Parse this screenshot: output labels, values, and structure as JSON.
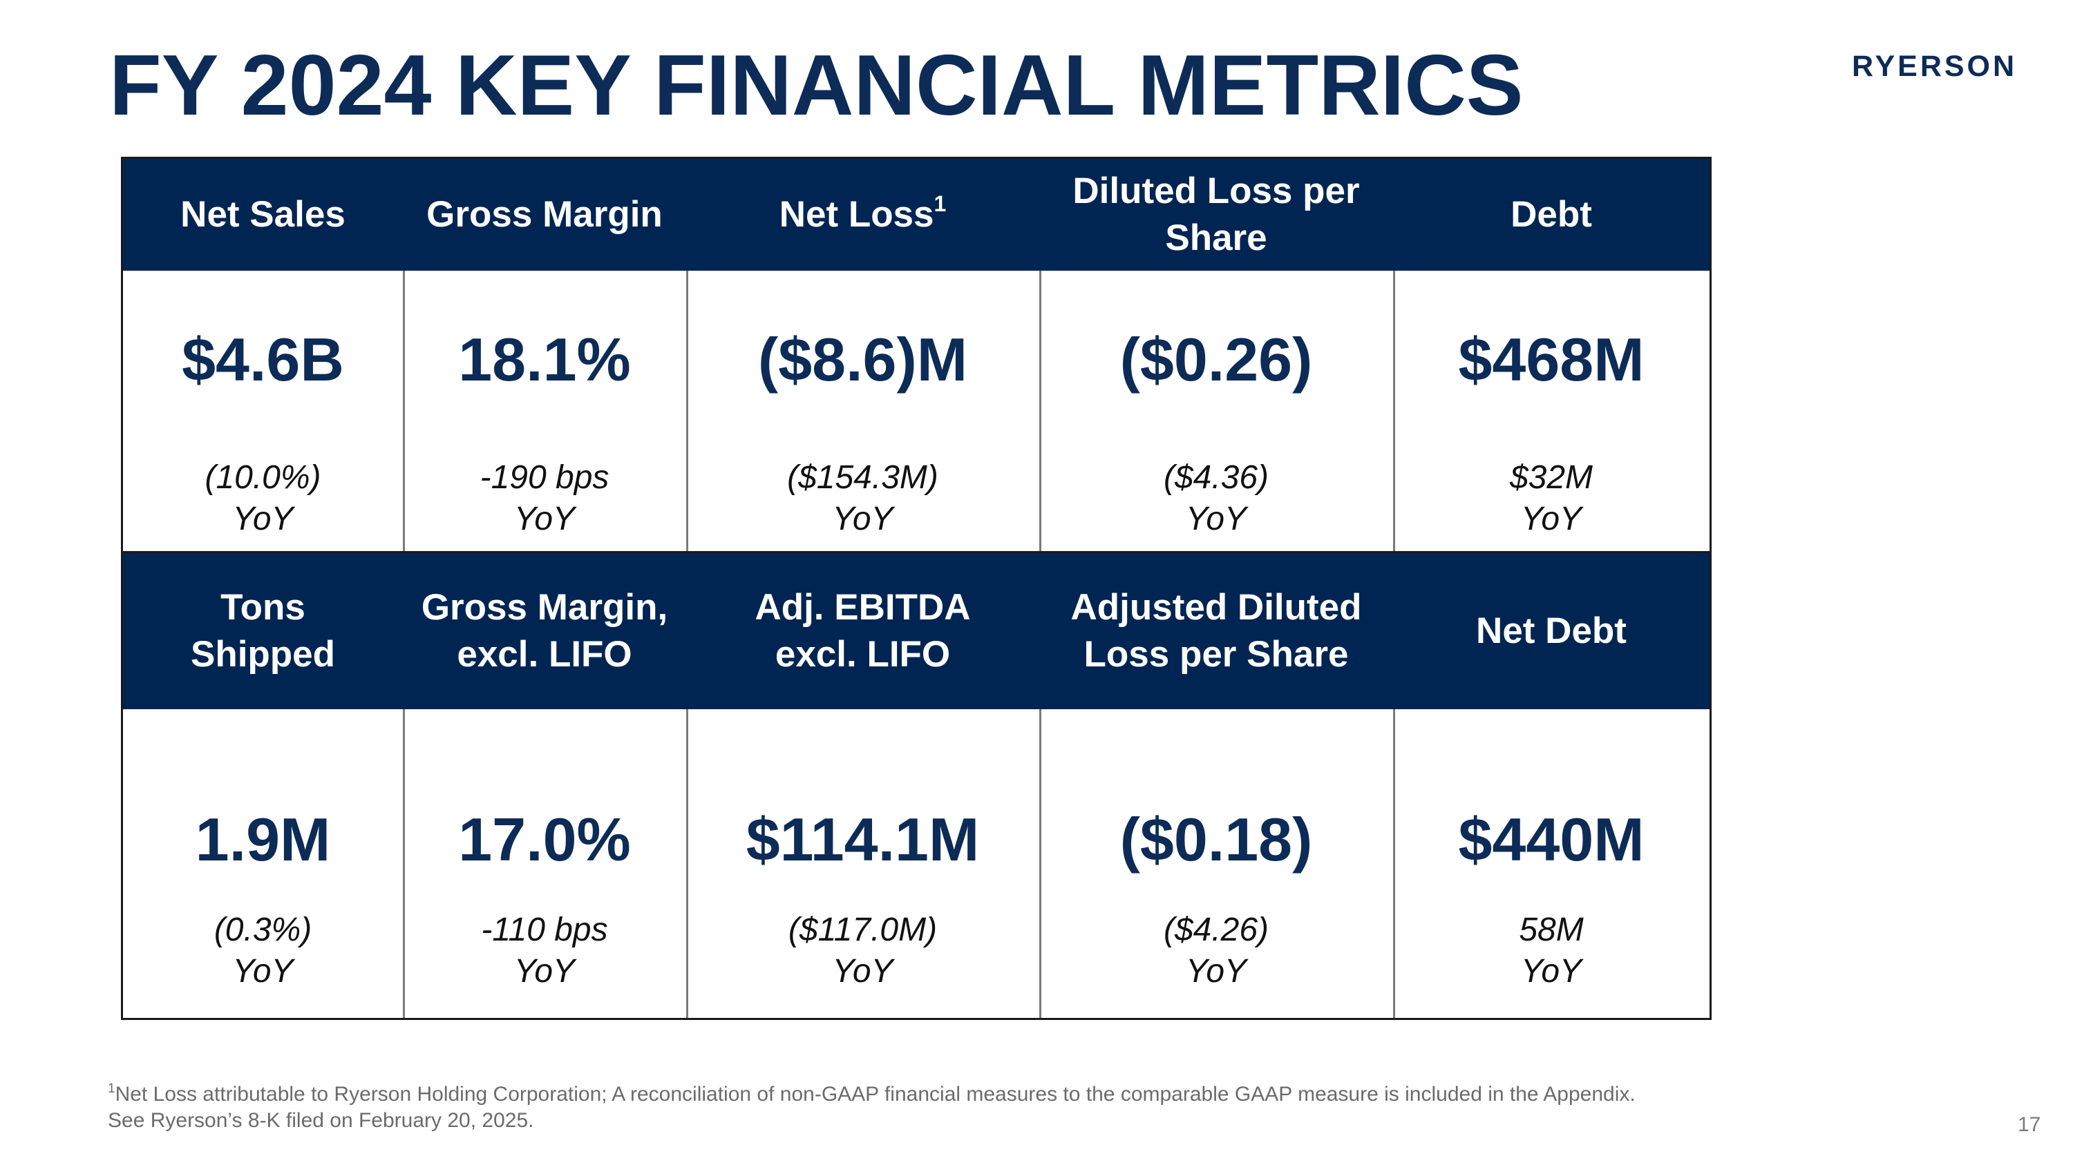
{
  "slide": {
    "title": "FY 2024 KEY FINANCIAL METRICS",
    "logo_text": "RYERSON",
    "page_number": "17"
  },
  "row1": [
    {
      "header": "Net Sales",
      "header_sup": "",
      "value": "$4.6B",
      "change": "(10.0%)",
      "yoy": "YoY"
    },
    {
      "header": "Gross Margin",
      "header_sup": "",
      "value": "18.1%",
      "change": "-190 bps",
      "yoy": "YoY"
    },
    {
      "header": "Net Loss",
      "header_sup": "1",
      "value": "($8.6)M",
      "change": "($154.3M)",
      "yoy": "YoY"
    },
    {
      "header": "Diluted Loss per Share",
      "header_sup": "",
      "value": "($0.26)",
      "change": "($4.36)",
      "yoy": "YoY"
    },
    {
      "header": "Debt",
      "header_sup": "",
      "value": "$468M",
      "change": "$32M",
      "yoy": "YoY"
    }
  ],
  "row2": [
    {
      "header": "Tons Shipped",
      "value": "1.9M",
      "change": "(0.3%)",
      "yoy": "YoY"
    },
    {
      "header": "Gross Margin, excl. LIFO",
      "value": "17.0%",
      "change": "-110 bps",
      "yoy": "YoY"
    },
    {
      "header": "Adj. EBITDA excl. LIFO",
      "value": "$114.1M",
      "change": "($117.0M)",
      "yoy": "YoY"
    },
    {
      "header": "Adjusted Diluted Loss per Share",
      "value": "($0.18)",
      "change": "($4.26)",
      "yoy": "YoY"
    },
    {
      "header": "Net Debt",
      "value": "$440M",
      "change": "58M",
      "yoy": "YoY"
    }
  ],
  "footnote": {
    "marker": "1",
    "line1": "Net Loss attributable to Ryerson Holding Corporation; A reconciliation of non-GAAP financial measures to the comparable GAAP measure is included in the Appendix.",
    "line2": "See Ryerson’s 8-K filed on February 20, 2025."
  },
  "colors": {
    "navy": "#002552",
    "title": "#0d2b57"
  }
}
